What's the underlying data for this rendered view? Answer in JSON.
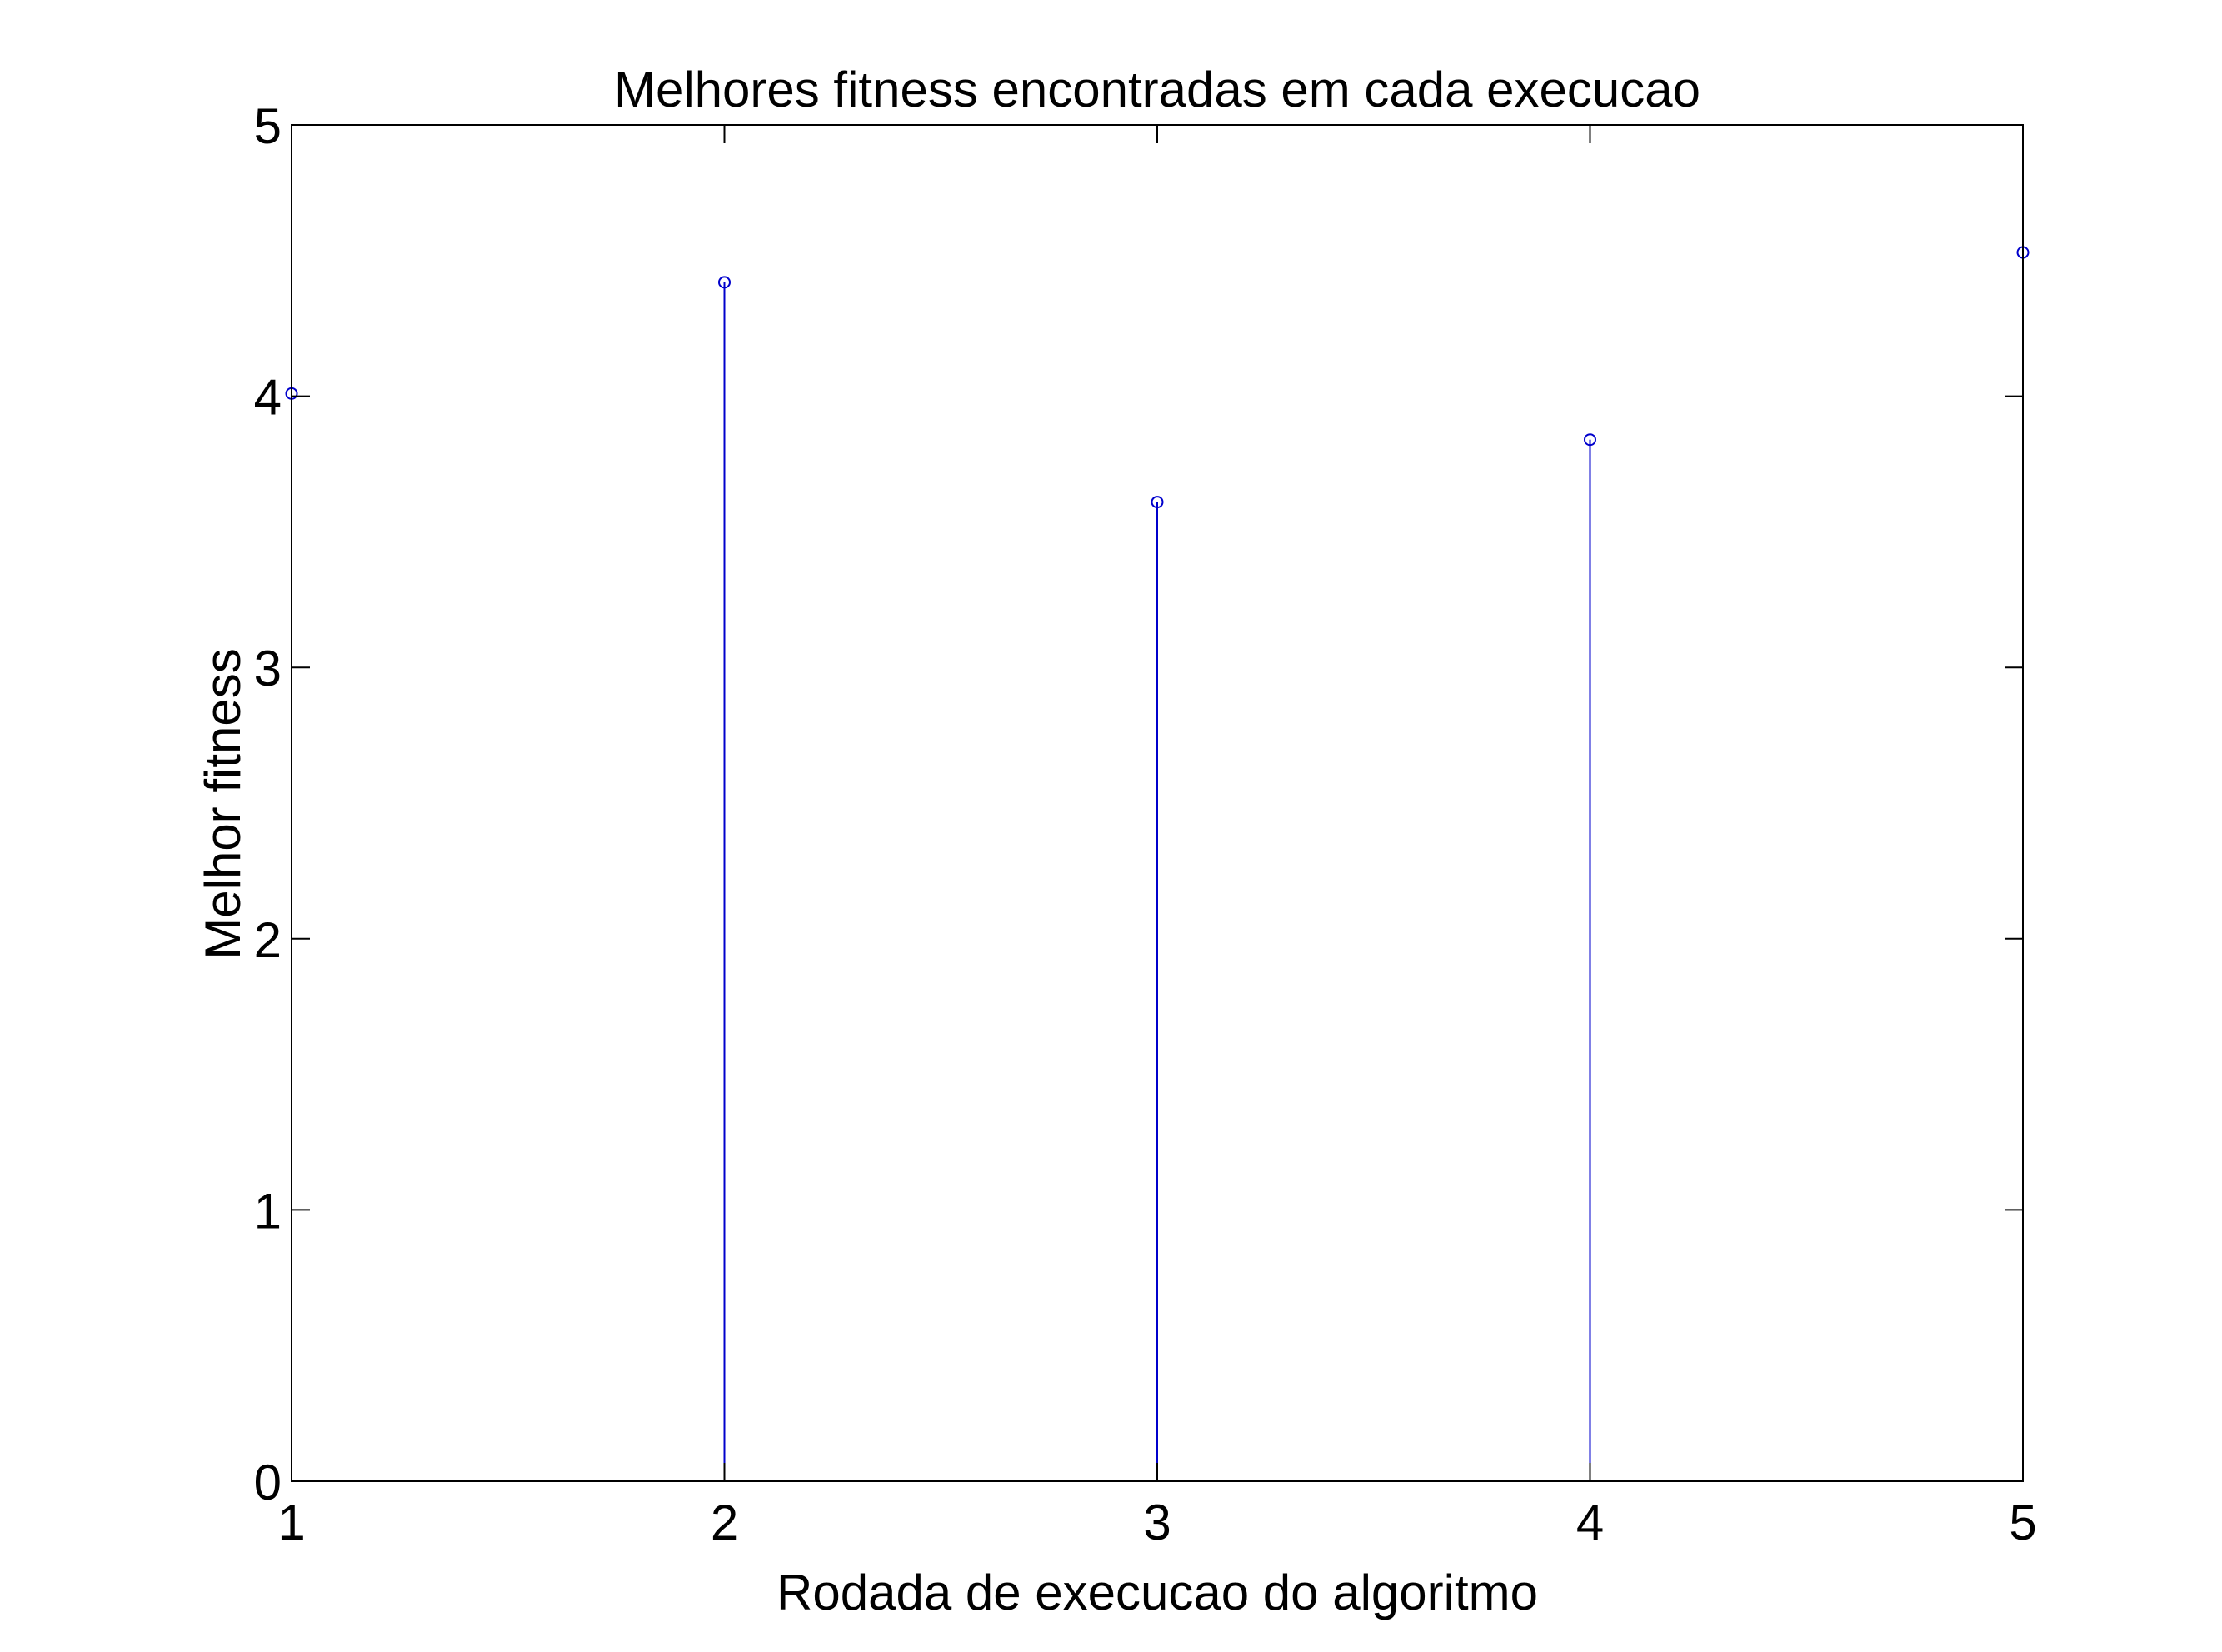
{
  "chart_data": {
    "type": "stem",
    "title": "Melhores fitness encontradas em cada execucao",
    "xlabel": "Rodada de execucao do algoritmo",
    "ylabel": "Melhor fitness",
    "xlim": [
      1,
      5
    ],
    "ylim": [
      0,
      5
    ],
    "xticks": [
      1,
      2,
      3,
      4,
      5
    ],
    "yticks": [
      0,
      1,
      2,
      3,
      4,
      5
    ],
    "grid": false,
    "legend": "none",
    "series": [
      {
        "marker": "circle",
        "color": "#0000cc",
        "x": [
          1,
          2,
          3,
          4,
          5
        ],
        "y": [
          4.01,
          4.42,
          3.61,
          3.84,
          4.53
        ]
      }
    ]
  }
}
